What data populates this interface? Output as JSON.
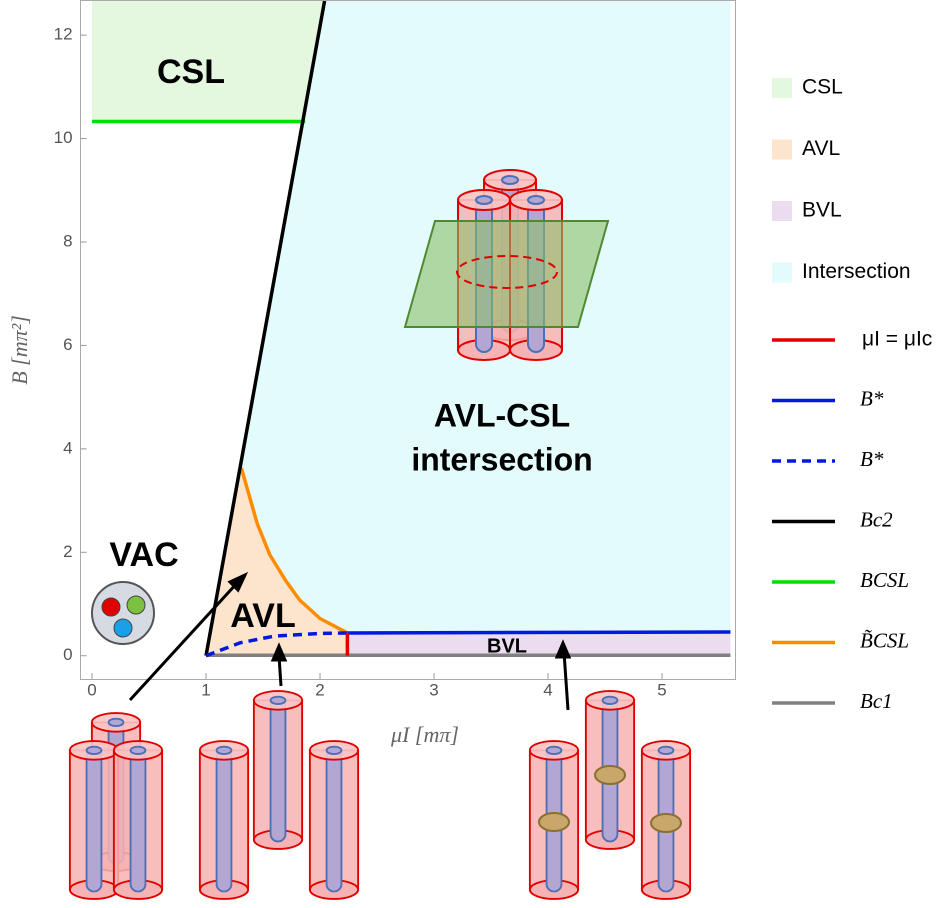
{
  "chart_data": {
    "type": "line",
    "xlabel": "μI [mπ]",
    "ylabel": "B [mπ²]",
    "xlim": [
      -0.1,
      5.64
    ],
    "ylim": [
      -0.45,
      12.66
    ],
    "xticks": [
      0,
      1,
      2,
      3,
      4,
      5
    ],
    "yticks": [
      0,
      2,
      4,
      6,
      8,
      10,
      12
    ],
    "regions": [
      {
        "name": "CSL",
        "color": "#e4f7df"
      },
      {
        "name": "AVL",
        "color": "#fde5cd"
      },
      {
        "name": "BVL",
        "color": "#ebdcef"
      },
      {
        "name": "Intersection",
        "color": "#e3fbfb"
      }
    ],
    "series": [
      {
        "name": "μI = μIc",
        "color": "#e00000",
        "dash": false,
        "x": [
          2.24,
          2.24
        ],
        "values": [
          0,
          0.44
        ]
      },
      {
        "name": "B*",
        "color": "#0018e0",
        "dash": false,
        "x": [
          2.24,
          5.6
        ],
        "values": [
          0.44,
          0.46
        ]
      },
      {
        "name": "B*",
        "color": "#0018e0",
        "dash": true,
        "x": [
          1,
          1.3,
          1.6,
          2,
          2.24
        ],
        "values": [
          0,
          0.25,
          0.38,
          0.43,
          0.44
        ]
      },
      {
        "name": "Bc2",
        "color": "#000000",
        "dash": false,
        "x": [
          1,
          2.04
        ],
        "values": [
          0,
          12.66
        ]
      },
      {
        "name": "BCSL",
        "color": "#00e000",
        "dash": false,
        "x": [
          0,
          1.87
        ],
        "values": [
          10.33,
          10.33
        ]
      },
      {
        "name": "B̃CSL",
        "color": "#ff8c00",
        "dash": false,
        "x": [
          1.31,
          1.45,
          1.56,
          1.7,
          1.82,
          2.0,
          2.24
        ],
        "values": [
          3.63,
          2.55,
          1.95,
          1.45,
          1.08,
          0.72,
          0.44
        ]
      },
      {
        "name": "Bc1",
        "color": "#808080",
        "dash": false,
        "x": [
          1,
          5.6
        ],
        "values": [
          0.01,
          0.01
        ]
      }
    ],
    "annotations": [
      "CSL",
      "VAC",
      "AVL",
      "AVL-CSL",
      "intersection",
      "BVL"
    ]
  }
}
